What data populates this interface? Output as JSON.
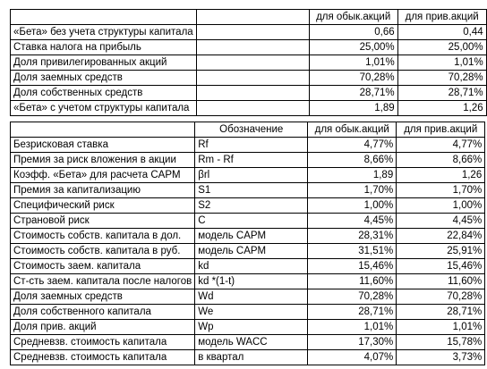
{
  "table1": {
    "headers": [
      "",
      "",
      "для обык.акций",
      "для прив.акций"
    ],
    "rows": [
      {
        "label": "«Бета» без учета структуры капитала",
        "code": "",
        "common": "0,66",
        "pref": "0,44"
      },
      {
        "label": "Ставка налога на прибыль",
        "code": "",
        "common": "25,00%",
        "pref": "25,00%"
      },
      {
        "label": "Доля привилегированных акций",
        "code": "",
        "common": "1,01%",
        "pref": "1,01%"
      },
      {
        "label": "Доля заемных средств",
        "code": "",
        "common": "70,28%",
        "pref": "70,28%"
      },
      {
        "label": "Доля собственных средств",
        "code": "",
        "common": "28,71%",
        "pref": "28,71%"
      },
      {
        "label": "«Бета» с учетом структуры капитала",
        "code": "",
        "common": "1,89",
        "pref": "1,26"
      }
    ]
  },
  "table2": {
    "headers": [
      "",
      "Обозначение",
      "для обык.акций",
      "для прив.акций"
    ],
    "rows": [
      {
        "label": "Безрисковая ставка",
        "code": "Rf",
        "common": "4,77%",
        "pref": "4,77%"
      },
      {
        "label": "Премия за риск вложения в акции",
        "code": "Rm - Rf",
        "common": "8,66%",
        "pref": "8,66%"
      },
      {
        "label": "Коэфф. «Бета» для расчета CAPM",
        "code": "βrl",
        "common": "1,89",
        "pref": "1,26"
      },
      {
        "label": "Премия за капитализацию",
        "code": "S1",
        "common": "1,70%",
        "pref": "1,70%"
      },
      {
        "label": "Специфический риск",
        "code": "S2",
        "common": "1,00%",
        "pref": "1,00%"
      },
      {
        "label": "Страновой риск",
        "code": "C",
        "common": "4,45%",
        "pref": "4,45%"
      },
      {
        "label": "Стоимость собств. капитала в дол.",
        "code": "модель CAPM",
        "common": "28,31%",
        "pref": "22,84%"
      },
      {
        "label": "Стоимость собств. капитала в руб.",
        "code": "модель CAPM",
        "common": "31,51%",
        "pref": "25,91%"
      },
      {
        "label": "Стоимость заем. капитала",
        "code": "kd",
        "common": "15,46%",
        "pref": "15,46%"
      },
      {
        "label": "Ст-сть заем. капитала после налогов",
        "code": "kd *(1-t)",
        "common": "11,60%",
        "pref": "11,60%"
      },
      {
        "label": "Доля заемных средств",
        "code": "Wd",
        "common": "70,28%",
        "pref": "70,28%"
      },
      {
        "label": "Доля собственного капитала",
        "code": "We",
        "common": "28,71%",
        "pref": "28,71%"
      },
      {
        "label": "Доля прив. акций",
        "code": "Wp",
        "common": "1,01%",
        "pref": "1,01%"
      },
      {
        "label": "Средневзв. стоимость капитала",
        "code": "модель WACC",
        "common": "17,30%",
        "pref": "15,78%"
      },
      {
        "label": "Средневзв. стоимость капитала",
        "code": "в квартал",
        "common": "4,07%",
        "pref": "3,73%"
      }
    ]
  }
}
